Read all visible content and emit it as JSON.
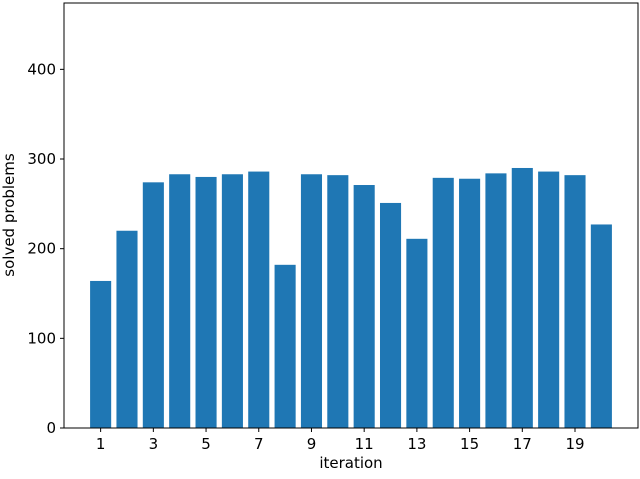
{
  "chart_data": {
    "type": "bar",
    "x": [
      1,
      2,
      3,
      4,
      5,
      6,
      7,
      8,
      9,
      10,
      11,
      12,
      13,
      14,
      15,
      16,
      17,
      18,
      19,
      20
    ],
    "values": [
      164,
      220,
      274,
      283,
      280,
      283,
      286,
      182,
      283,
      282,
      271,
      251,
      211,
      279,
      278,
      284,
      290,
      286,
      282,
      227
    ],
    "color": "#1f77b4",
    "xlabel": "iteration",
    "ylabel": "solved problems",
    "xlim": [
      -0.39,
      21.39
    ],
    "xticks": [
      1,
      3,
      5,
      7,
      9,
      11,
      13,
      15,
      17,
      19
    ],
    "ylim": [
      0,
      474
    ],
    "yticks": [
      0,
      100,
      200,
      300,
      400
    ]
  }
}
